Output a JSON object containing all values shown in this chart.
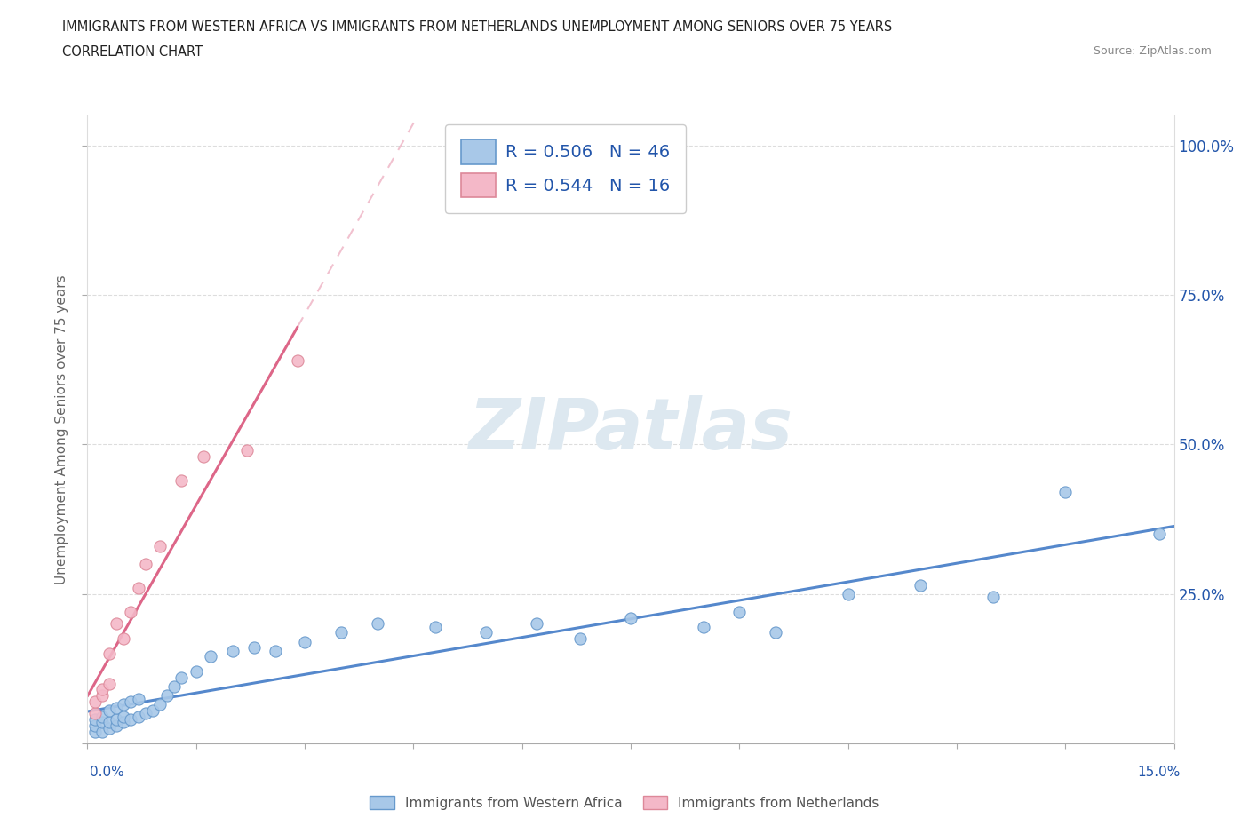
{
  "title_line1": "IMMIGRANTS FROM WESTERN AFRICA VS IMMIGRANTS FROM NETHERLANDS UNEMPLOYMENT AMONG SENIORS OVER 75 YEARS",
  "title_line2": "CORRELATION CHART",
  "source": "Source: ZipAtlas.com",
  "ylabel": "Unemployment Among Seniors over 75 years",
  "r_blue": 0.506,
  "n_blue": 46,
  "r_pink": 0.544,
  "n_pink": 16,
  "color_blue": "#a8c8e8",
  "color_pink": "#f4b8c8",
  "edge_blue": "#6699cc",
  "edge_pink": "#dd8899",
  "line_blue": "#5588cc",
  "line_pink": "#dd6688",
  "legend_text_color": "#2255aa",
  "ytick_color": "#2255aa",
  "xtick_color": "#2255aa",
  "blue_x": [
    0.001,
    0.001,
    0.001,
    0.002,
    0.002,
    0.002,
    0.003,
    0.003,
    0.003,
    0.004,
    0.004,
    0.004,
    0.005,
    0.005,
    0.005,
    0.006,
    0.006,
    0.007,
    0.007,
    0.008,
    0.009,
    0.01,
    0.011,
    0.012,
    0.013,
    0.015,
    0.017,
    0.02,
    0.023,
    0.026,
    0.03,
    0.035,
    0.04,
    0.048,
    0.055,
    0.062,
    0.068,
    0.075,
    0.085,
    0.09,
    0.095,
    0.105,
    0.115,
    0.125,
    0.135,
    0.148
  ],
  "blue_y": [
    0.02,
    0.03,
    0.04,
    0.02,
    0.035,
    0.045,
    0.025,
    0.035,
    0.055,
    0.03,
    0.04,
    0.06,
    0.035,
    0.045,
    0.065,
    0.04,
    0.07,
    0.045,
    0.075,
    0.05,
    0.055,
    0.065,
    0.08,
    0.095,
    0.11,
    0.12,
    0.145,
    0.155,
    0.16,
    0.155,
    0.17,
    0.185,
    0.2,
    0.195,
    0.185,
    0.2,
    0.175,
    0.21,
    0.195,
    0.22,
    0.185,
    0.25,
    0.265,
    0.245,
    0.42,
    0.35
  ],
  "pink_x": [
    0.001,
    0.001,
    0.002,
    0.002,
    0.003,
    0.003,
    0.004,
    0.005,
    0.006,
    0.007,
    0.008,
    0.01,
    0.013,
    0.016,
    0.022,
    0.029
  ],
  "pink_y": [
    0.05,
    0.07,
    0.08,
    0.09,
    0.1,
    0.15,
    0.2,
    0.175,
    0.22,
    0.26,
    0.3,
    0.33,
    0.44,
    0.48,
    0.49,
    0.64
  ],
  "xlim": [
    0,
    0.15
  ],
  "ylim": [
    0,
    1.05
  ],
  "yticks": [
    0.0,
    0.25,
    0.5,
    0.75,
    1.0
  ],
  "ytick_labels": [
    "",
    "25.0%",
    "50.0%",
    "75.0%",
    "100.0%"
  ],
  "grid_color": "#dddddd",
  "watermark_color": "#dde8f0"
}
